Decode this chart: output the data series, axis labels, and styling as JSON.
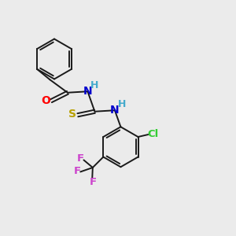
{
  "bg_color": "#ebebeb",
  "bond_color": "#1a1a1a",
  "O_color": "#ff0000",
  "N_color": "#0000cc",
  "S_color": "#b8a000",
  "Cl_color": "#33cc33",
  "F_color": "#cc44cc",
  "H_color": "#44aacc",
  "lw": 1.4,
  "fontsize": 9.5,
  "xlim": [
    0,
    10
  ],
  "ylim": [
    0,
    10
  ]
}
